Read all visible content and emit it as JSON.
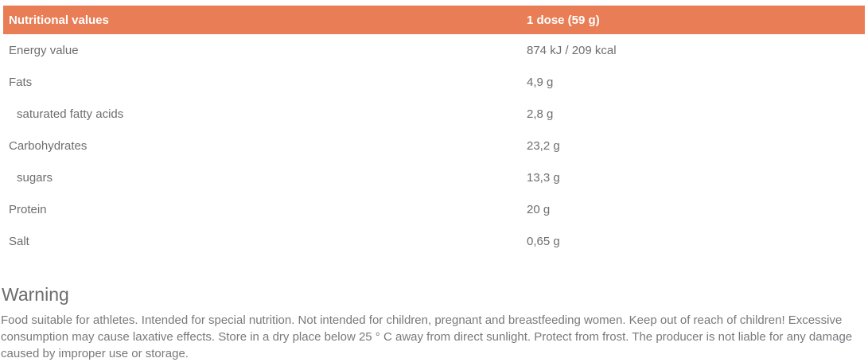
{
  "table": {
    "header": {
      "label": "Nutritional values",
      "dose": "1 dose (59 g)"
    },
    "rows": [
      {
        "label": "Energy value",
        "value": "874 kJ / 209 kcal",
        "indent": false
      },
      {
        "label": "Fats",
        "value": "4,9 g",
        "indent": false
      },
      {
        "label": "saturated fatty acids",
        "value": "2,8 g",
        "indent": true
      },
      {
        "label": "Carbohydrates",
        "value": "23,2 g",
        "indent": false
      },
      {
        "label": "sugars",
        "value": "13,3 g",
        "indent": true
      },
      {
        "label": "Protein",
        "value": "20 g",
        "indent": false
      },
      {
        "label": "Salt",
        "value": "0,65 g",
        "indent": false
      }
    ]
  },
  "warning": {
    "title": "Warning",
    "text": "Food suitable for athletes. Intended for special nutrition. Not intended for children, pregnant and breastfeeding women. Keep out of reach of children! Excessive consumption may cause laxative effects. Store in a dry place below 25 ° C away from direct sunlight. Protect from frost. The producer is not liable for any damage caused by improper use or storage."
  },
  "colors": {
    "accent": "#e97d55",
    "header_text": "#ffffff",
    "body_text": "#6e6e6e",
    "muted_text": "#77797c"
  }
}
